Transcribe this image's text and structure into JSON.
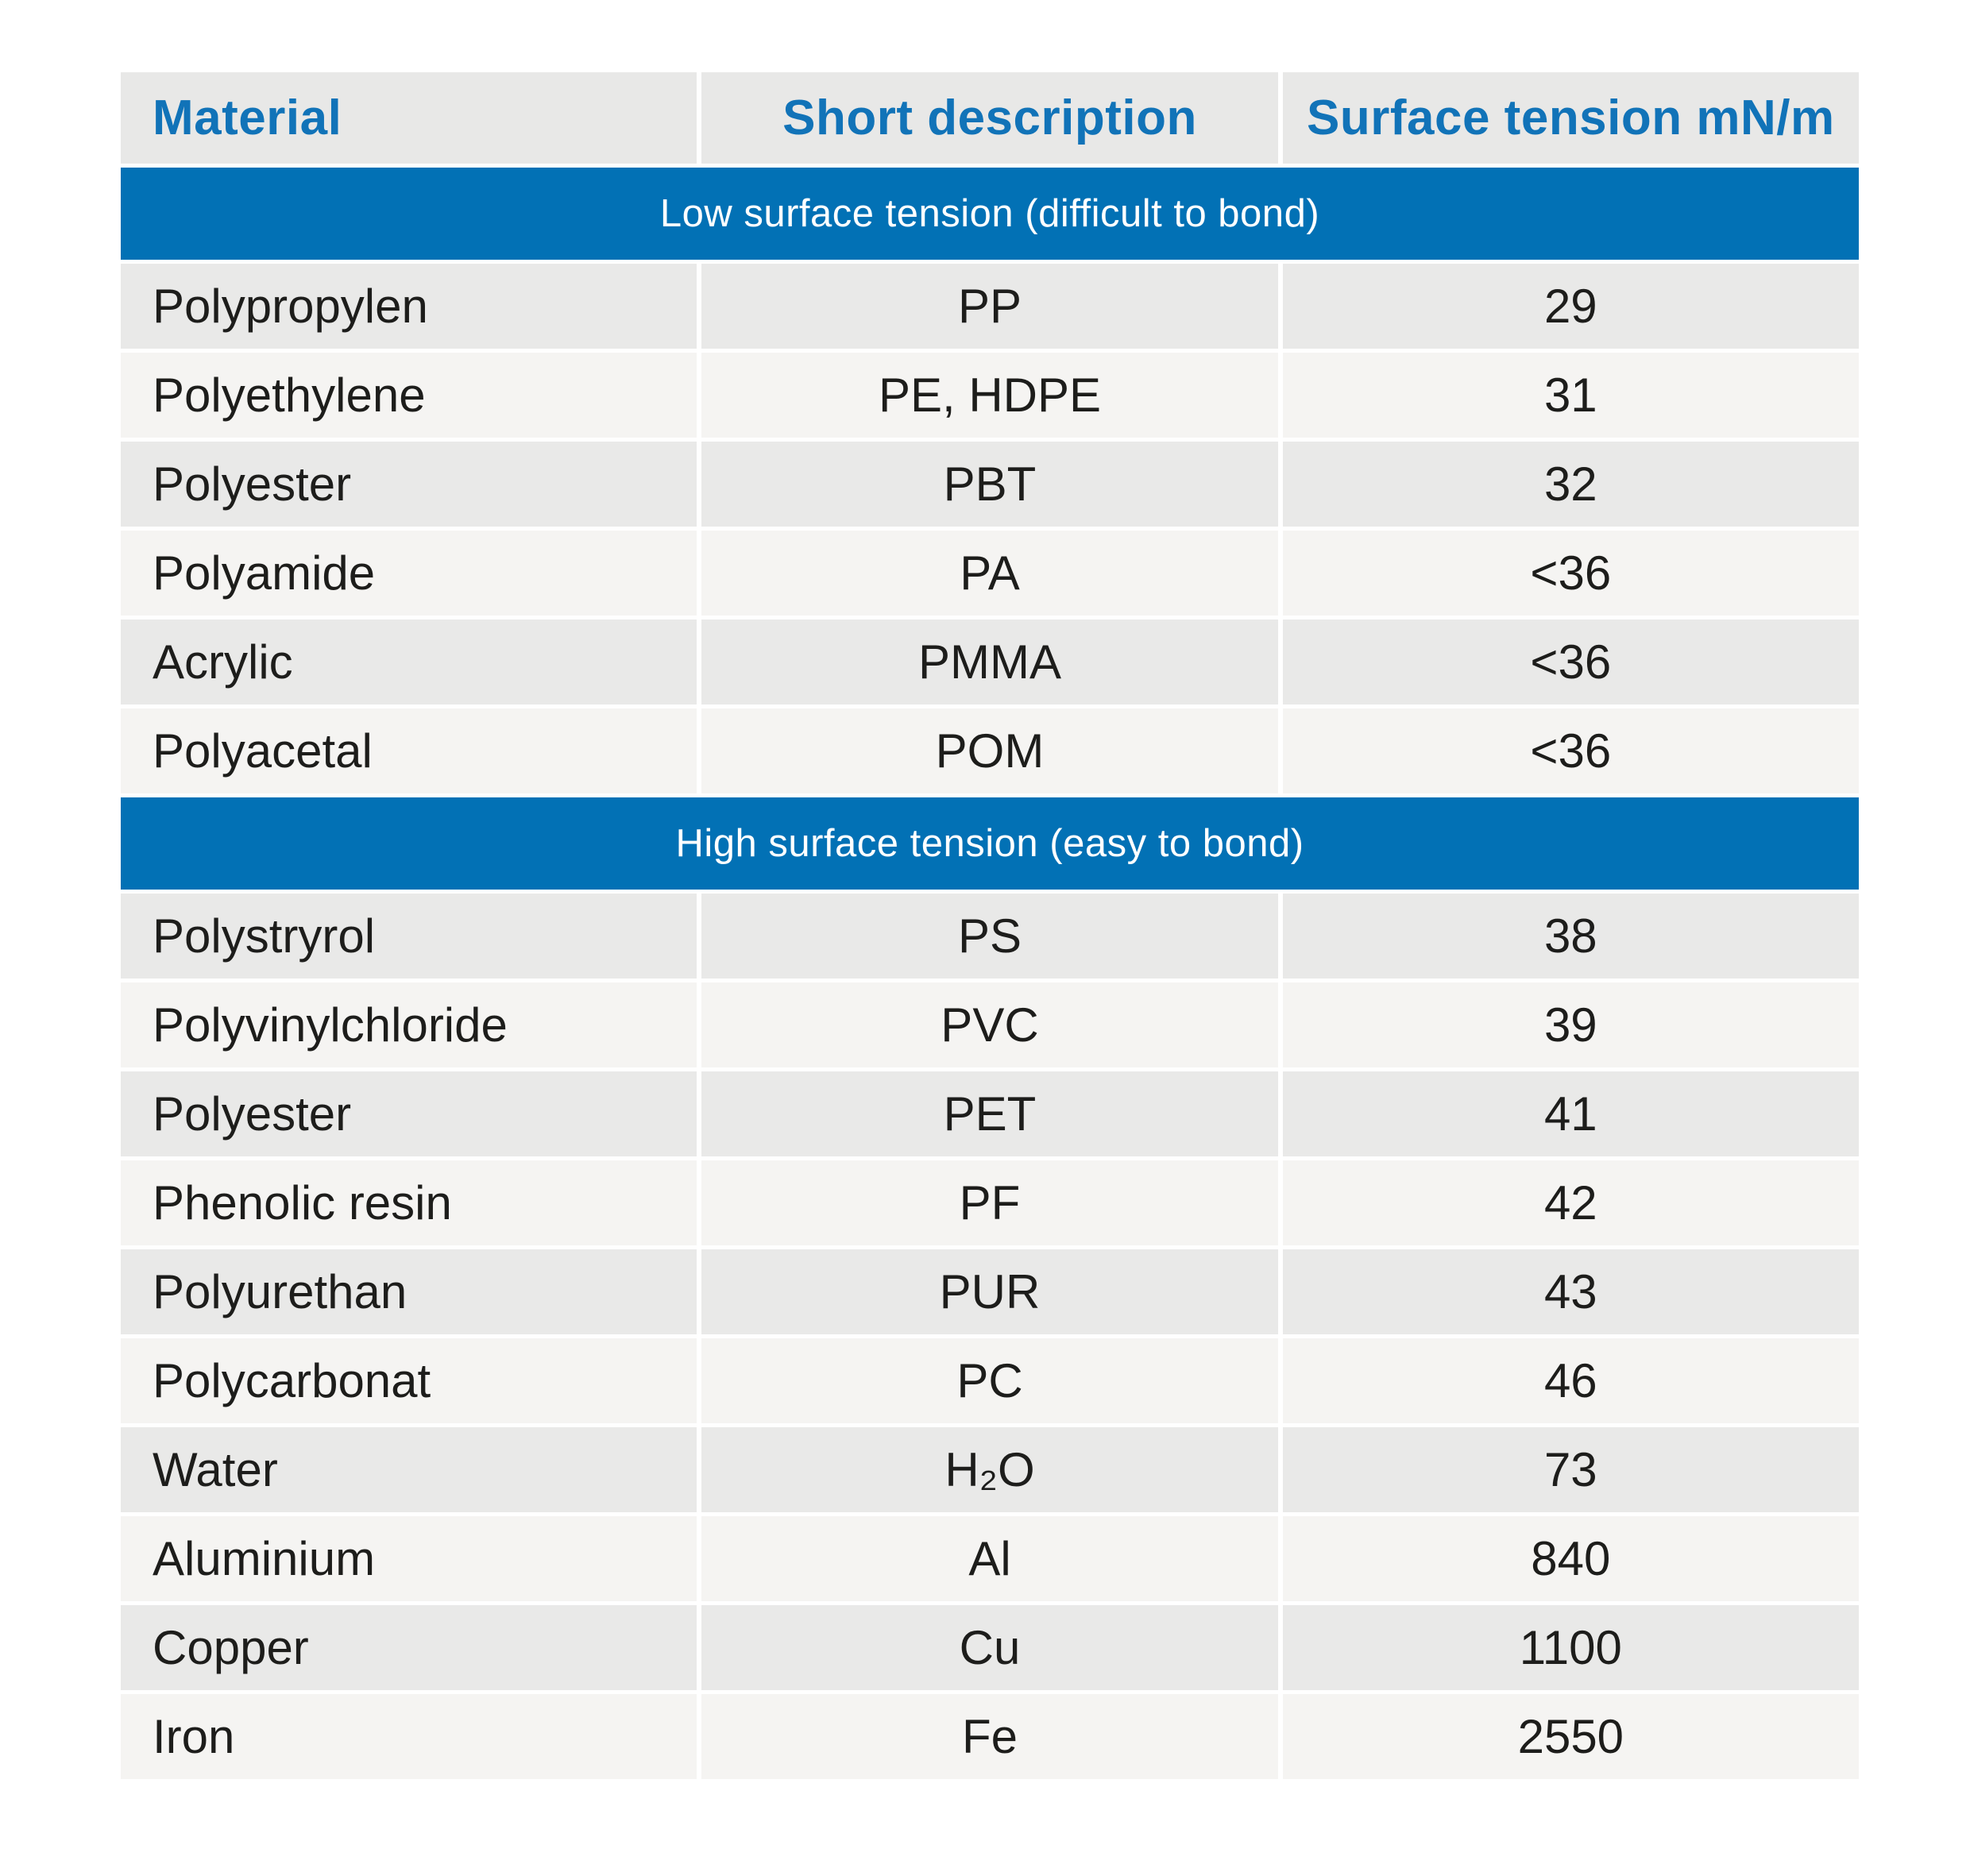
{
  "colors": {
    "band_blue": "#0271b5",
    "header_text_blue": "#1173b8",
    "header_bg": "#e8e8e7",
    "row_gray": "#e9e9e8",
    "row_light": "#f5f4f2",
    "body_text": "#1d1d1b",
    "band_text": "#ffffff",
    "page_bg": "#ffffff"
  },
  "chart_data": {
    "type": "table",
    "columns": [
      "Material",
      "Short description",
      "Surface tension mN/m"
    ],
    "sections": [
      {
        "title": "Low surface tension (difficult to bond)",
        "rows": [
          {
            "material": "Polypropylen",
            "short": "PP",
            "tension": "29"
          },
          {
            "material": "Polyethylene",
            "short": "PE, HDPE",
            "tension": "31"
          },
          {
            "material": "Polyester",
            "short": "PBT",
            "tension": "32"
          },
          {
            "material": "Polyamide",
            "short": "PA",
            "tension": "<36"
          },
          {
            "material": "Acrylic",
            "short": "PMMA",
            "tension": "<36"
          },
          {
            "material": "Polyacetal",
            "short": "POM",
            "tension": "<36"
          }
        ]
      },
      {
        "title": "High surface tension (easy to bond)",
        "rows": [
          {
            "material": "Polystryrol",
            "short": "PS",
            "tension": "38"
          },
          {
            "material": "Polyvinylchloride",
            "short": "PVC",
            "tension": "39"
          },
          {
            "material": "Polyester",
            "short": "PET",
            "tension": "41"
          },
          {
            "material": "Phenolic resin",
            "short": "PF",
            "tension": "42"
          },
          {
            "material": "Polyurethan",
            "short": "PUR",
            "tension": "43"
          },
          {
            "material": "Polycarbonat",
            "short": "PC",
            "tension": "46"
          },
          {
            "material": "Water",
            "short": "H₂O",
            "tension": "73"
          },
          {
            "material": "Aluminium",
            "short": "Al",
            "tension": "840"
          },
          {
            "material": "Copper",
            "short": "Cu",
            "tension": "1100"
          },
          {
            "material": "Iron",
            "short": "Fe",
            "tension": "2550"
          }
        ]
      }
    ]
  }
}
